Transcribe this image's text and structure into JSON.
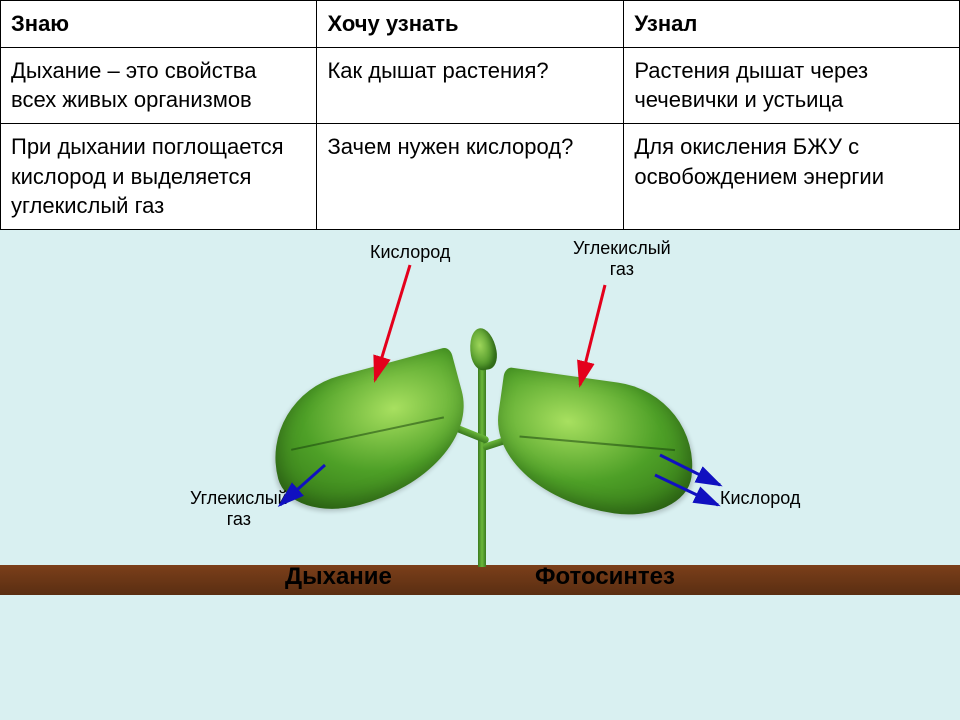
{
  "table": {
    "headers": [
      "Знаю",
      "Хочу узнать",
      "Узнал"
    ],
    "rows": [
      [
        "Дыхание – это свойства всех живых организмов",
        "Как дышат растения?",
        "Растения дышат через чечевички и устьица"
      ],
      [
        "При дыхании поглощается кислород и выделяется углекислый газ",
        "Зачем нужен кислород?",
        "Для окисления БЖУ с освобождением энергии"
      ]
    ]
  },
  "diagram": {
    "background_color": "#d9f0f1",
    "soil_color": "#6b3518",
    "leaf_color": "#4ea027",
    "stem_color": "#4b9425",
    "labels": {
      "oxygen_top": "Кислород",
      "co2_top": "Углекислый\nгаз",
      "co2_left": "Углекислый\nгаз",
      "oxygen_right": "Кислород",
      "respiration": "Дыхание",
      "photosynthesis": "Фотосинтез"
    },
    "arrows": {
      "red": "#e4001c",
      "blue": "#1010c0"
    },
    "label_fontsize": 18,
    "process_fontsize": 24
  }
}
